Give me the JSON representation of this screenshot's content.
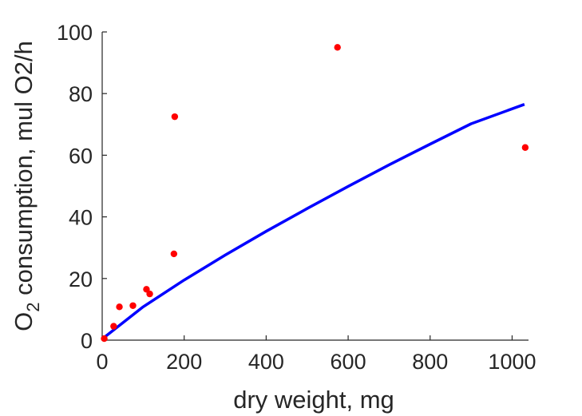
{
  "chart_data": {
    "type": "scatter",
    "title": "",
    "xlabel": "dry weight, mg",
    "ylabel_prefix": "O",
    "ylabel_subscript": "2",
    "ylabel_rest": " consumption, mul O2/h",
    "xlim": [
      0,
      1040
    ],
    "ylim": [
      0,
      100
    ],
    "xticks": [
      0,
      200,
      400,
      600,
      800,
      1000
    ],
    "yticks": [
      0,
      20,
      40,
      60,
      80,
      100
    ],
    "grid": false,
    "series": [
      {
        "kind": "points",
        "color": "#ff0000",
        "points": [
          {
            "x": 5,
            "y": 0.5
          },
          {
            "x": 28,
            "y": 4.5
          },
          {
            "x": 42,
            "y": 10.8
          },
          {
            "x": 75,
            "y": 11.2
          },
          {
            "x": 108,
            "y": 16.5
          },
          {
            "x": 116,
            "y": 15
          },
          {
            "x": 175,
            "y": 28
          },
          {
            "x": 177,
            "y": 72.5
          },
          {
            "x": 574,
            "y": 95
          },
          {
            "x": 1032,
            "y": 62.5
          }
        ]
      },
      {
        "kind": "line",
        "color": "#0000ff",
        "points": [
          {
            "x": 5,
            "y": 0.9
          },
          {
            "x": 100,
            "y": 10.8
          },
          {
            "x": 200,
            "y": 19.5
          },
          {
            "x": 300,
            "y": 27.6
          },
          {
            "x": 400,
            "y": 35.3
          },
          {
            "x": 500,
            "y": 42.7
          },
          {
            "x": 600,
            "y": 49.9
          },
          {
            "x": 700,
            "y": 56.9
          },
          {
            "x": 800,
            "y": 63.6
          },
          {
            "x": 900,
            "y": 70.2
          },
          {
            "x": 1030,
            "y": 76.5
          }
        ]
      }
    ]
  }
}
